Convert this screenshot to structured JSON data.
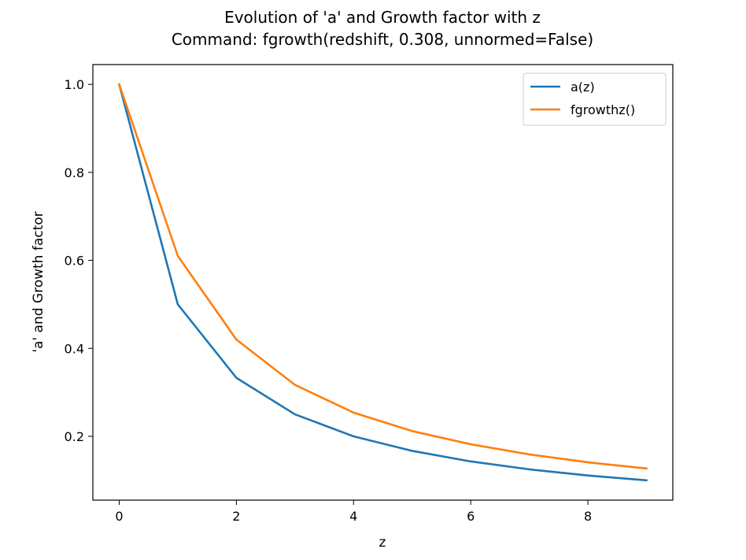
{
  "chart_data": {
    "type": "line",
    "title": "Evolution of 'a' and Growth factor with z",
    "subtitle": "Command: fgrowth(redshift, 0.308, unnormed=False)",
    "xlabel": "z",
    "ylabel": "'a' and Growth factor",
    "xlim": [
      -0.45,
      9.45
    ],
    "ylim": [
      0.055,
      1.045
    ],
    "xticks": [
      0,
      2,
      4,
      6,
      8
    ],
    "yticks": [
      0.2,
      0.4,
      0.6,
      0.8,
      1.0
    ],
    "xtick_labels": [
      "0",
      "2",
      "4",
      "6",
      "8"
    ],
    "ytick_labels": [
      "0.2",
      "0.4",
      "0.6",
      "0.8",
      "1.0"
    ],
    "grid": false,
    "legend_position": "top-right",
    "x": [
      0,
      1,
      2,
      3,
      4,
      5,
      6,
      7,
      8,
      9
    ],
    "series": [
      {
        "name": "a(z)",
        "color": "#1f77b4",
        "values": [
          1.0,
          0.5,
          0.333,
          0.25,
          0.2,
          0.167,
          0.143,
          0.125,
          0.111,
          0.1
        ]
      },
      {
        "name": "fgrowthz()",
        "color": "#ff7f0e",
        "values": [
          1.0,
          0.61,
          0.42,
          0.317,
          0.254,
          0.212,
          0.182,
          0.159,
          0.141,
          0.127
        ]
      }
    ]
  }
}
